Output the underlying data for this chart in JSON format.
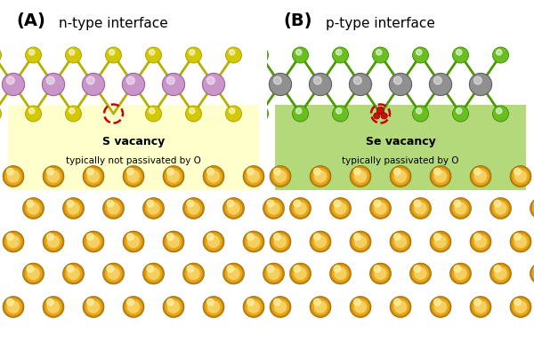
{
  "panel_A_title": "(A)",
  "panel_A_subtitle": "n-type interface",
  "panel_B_title": "(B)",
  "panel_B_subtitle": "p-type interface",
  "vacancy_label_A": "S vacancy",
  "vacancy_sublabel_A": "typically not passivated by O",
  "vacancy_label_B": "Se vacancy",
  "vacancy_sublabel_B": "typically passivated by O",
  "bg_color": "#ffffff",
  "box_color_A": "#ffffcc",
  "box_color_B": "#b3d97a",
  "sulfur_color": "#d4c800",
  "selenium_color": "#6abf20",
  "mo_color": "#c896c8",
  "w_color": "#909090",
  "gold_outer": "#c88800",
  "gold_mid": "#e8a820",
  "gold_inner": "#f5d060",
  "gold_hilight": "#fdf0a0",
  "bond_color_A": "#b8b000",
  "bond_color_B": "#4a9900",
  "vacancy_circle_color": "#cc0000",
  "vacancy_A_fill": "none",
  "vacancy_B_fill": "#ffeecc",
  "o_atom_color": "#cc1100",
  "mo_edge": "#a060a0",
  "w_edge": "#606060",
  "chalc_A_edge": "#a0a000",
  "chalc_B_edge": "#3a8800"
}
